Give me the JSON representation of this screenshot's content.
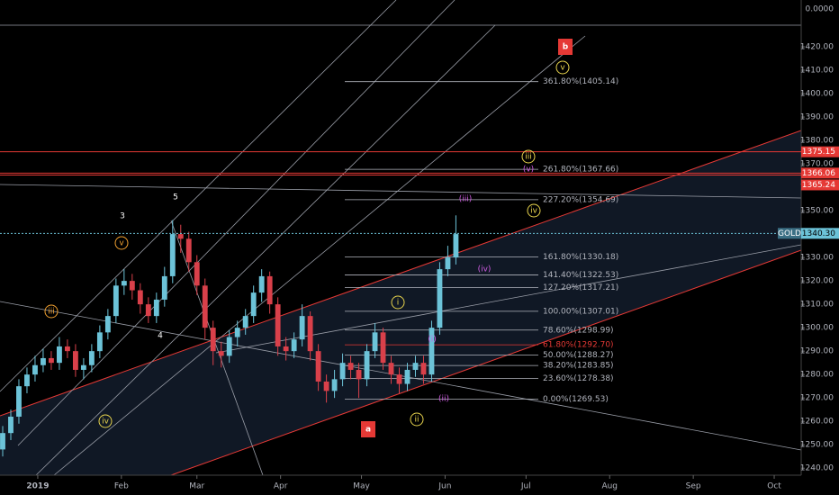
{
  "chart_data": {
    "type": "candlestick",
    "scale_label": "0.0000",
    "up_color": "#6cc3d8",
    "down_color": "#d9404a",
    "candles": [
      {
        "x": -13,
        "open": 1248,
        "high": 1258,
        "low": 1245,
        "close": 1255
      },
      {
        "x": -10,
        "open": 1255,
        "high": 1265,
        "low": 1252,
        "close": 1262
      },
      {
        "x": -7,
        "open": 1262,
        "high": 1278,
        "low": 1259,
        "close": 1275
      },
      {
        "x": -4,
        "open": 1275,
        "high": 1283,
        "low": 1272,
        "close": 1280
      },
      {
        "x": -1,
        "open": 1280,
        "high": 1288,
        "low": 1277,
        "close": 1284
      },
      {
        "x": 2,
        "open": 1284,
        "high": 1291,
        "low": 1281,
        "close": 1287
      },
      {
        "x": 5,
        "open": 1287,
        "high": 1290,
        "low": 1282,
        "close": 1285
      },
      {
        "x": 8,
        "open": 1285,
        "high": 1296,
        "low": 1282,
        "close": 1292
      },
      {
        "x": 11,
        "open": 1292,
        "high": 1295,
        "low": 1287,
        "close": 1290
      },
      {
        "x": 14,
        "open": 1290,
        "high": 1293,
        "low": 1279,
        "close": 1282
      },
      {
        "x": 17,
        "open": 1282,
        "high": 1287,
        "low": 1278,
        "close": 1284
      },
      {
        "x": 20,
        "open": 1284,
        "high": 1293,
        "low": 1281,
        "close": 1290
      },
      {
        "x": 23,
        "open": 1290,
        "high": 1301,
        "low": 1287,
        "close": 1298
      },
      {
        "x": 26,
        "open": 1298,
        "high": 1308,
        "low": 1295,
        "close": 1305
      },
      {
        "x": 29,
        "open": 1305,
        "high": 1321,
        "low": 1302,
        "close": 1318
      },
      {
        "x": 32,
        "open": 1318,
        "high": 1325,
        "low": 1314,
        "close": 1320
      },
      {
        "x": 35,
        "open": 1320,
        "high": 1323,
        "low": 1312,
        "close": 1316
      },
      {
        "x": 38,
        "open": 1316,
        "high": 1319,
        "low": 1306,
        "close": 1310
      },
      {
        "x": 41,
        "open": 1310,
        "high": 1313,
        "low": 1302,
        "close": 1305
      },
      {
        "x": 44,
        "open": 1305,
        "high": 1315,
        "low": 1302,
        "close": 1312
      },
      {
        "x": 47,
        "open": 1312,
        "high": 1326,
        "low": 1309,
        "close": 1322
      },
      {
        "x": 50,
        "open": 1322,
        "high": 1346,
        "low": 1319,
        "close": 1340
      },
      {
        "x": 53,
        "open": 1340,
        "high": 1344,
        "low": 1332,
        "close": 1338
      },
      {
        "x": 56,
        "open": 1338,
        "high": 1341,
        "low": 1324,
        "close": 1328
      },
      {
        "x": 59,
        "open": 1328,
        "high": 1331,
        "low": 1314,
        "close": 1318
      },
      {
        "x": 62,
        "open": 1318,
        "high": 1321,
        "low": 1295,
        "close": 1300
      },
      {
        "x": 65,
        "open": 1300,
        "high": 1303,
        "low": 1284,
        "close": 1290
      },
      {
        "x": 68,
        "open": 1290,
        "high": 1294,
        "low": 1283,
        "close": 1288
      },
      {
        "x": 71,
        "open": 1288,
        "high": 1299,
        "low": 1285,
        "close": 1296
      },
      {
        "x": 74,
        "open": 1296,
        "high": 1303,
        "low": 1292,
        "close": 1300
      },
      {
        "x": 77,
        "open": 1300,
        "high": 1308,
        "low": 1297,
        "close": 1305
      },
      {
        "x": 80,
        "open": 1305,
        "high": 1318,
        "low": 1302,
        "close": 1315
      },
      {
        "x": 83,
        "open": 1315,
        "high": 1325,
        "low": 1311,
        "close": 1322
      },
      {
        "x": 86,
        "open": 1322,
        "high": 1324,
        "low": 1306,
        "close": 1310
      },
      {
        "x": 89,
        "open": 1310,
        "high": 1313,
        "low": 1288,
        "close": 1292
      },
      {
        "x": 92,
        "open": 1292,
        "high": 1296,
        "low": 1286,
        "close": 1290
      },
      {
        "x": 95,
        "open": 1290,
        "high": 1298,
        "low": 1287,
        "close": 1295
      },
      {
        "x": 98,
        "open": 1295,
        "high": 1310,
        "low": 1292,
        "close": 1305
      },
      {
        "x": 101,
        "open": 1305,
        "high": 1307,
        "low": 1286,
        "close": 1290
      },
      {
        "x": 104,
        "open": 1290,
        "high": 1293,
        "low": 1273,
        "close": 1277
      },
      {
        "x": 107,
        "open": 1277,
        "high": 1280,
        "low": 1268,
        "close": 1273
      },
      {
        "x": 110,
        "open": 1273,
        "high": 1282,
        "low": 1270,
        "close": 1278
      },
      {
        "x": 113,
        "open": 1278,
        "high": 1289,
        "low": 1275,
        "close": 1285
      },
      {
        "x": 116,
        "open": 1285,
        "high": 1288,
        "low": 1278,
        "close": 1282
      },
      {
        "x": 119,
        "open": 1282,
        "high": 1285,
        "low": 1270,
        "close": 1278
      },
      {
        "x": 122,
        "open": 1278,
        "high": 1293,
        "low": 1275,
        "close": 1290
      },
      {
        "x": 125,
        "open": 1290,
        "high": 1302,
        "low": 1287,
        "close": 1298
      },
      {
        "x": 128,
        "open": 1298,
        "high": 1300,
        "low": 1282,
        "close": 1285
      },
      {
        "x": 131,
        "open": 1285,
        "high": 1288,
        "low": 1276,
        "close": 1280
      },
      {
        "x": 134,
        "open": 1280,
        "high": 1283,
        "low": 1272,
        "close": 1276
      },
      {
        "x": 137,
        "open": 1276,
        "high": 1285,
        "low": 1273,
        "close": 1282
      },
      {
        "x": 140,
        "open": 1282,
        "high": 1288,
        "low": 1279,
        "close": 1285
      },
      {
        "x": 143,
        "open": 1285,
        "high": 1288,
        "low": 1276,
        "close": 1280
      },
      {
        "x": 146,
        "open": 1280,
        "high": 1303,
        "low": 1277,
        "close": 1300
      },
      {
        "x": 149,
        "open": 1300,
        "high": 1328,
        "low": 1297,
        "close": 1325
      },
      {
        "x": 152,
        "open": 1325,
        "high": 1335,
        "low": 1322,
        "close": 1330
      },
      {
        "x": 155,
        "open": 1330,
        "high": 1348,
        "low": 1327,
        "close": 1340
      }
    ],
    "xlim": [
      -14,
      283
    ],
    "xticks": [
      {
        "value": 0,
        "label": "2019"
      },
      {
        "value": 31,
        "label": "Feb"
      },
      {
        "value": 59,
        "label": "Mar"
      },
      {
        "value": 90,
        "label": "Apr"
      },
      {
        "value": 120,
        "label": "May"
      },
      {
        "value": 151,
        "label": "Jun"
      },
      {
        "value": 181,
        "label": "Jul"
      },
      {
        "value": 212,
        "label": "Aug"
      },
      {
        "value": 243,
        "label": "Sep"
      },
      {
        "value": 273,
        "label": "Oct"
      }
    ],
    "ylim": [
      1237,
      1440
    ],
    "yticks": [
      {
        "value": 1240,
        "label": "1240.00"
      },
      {
        "value": 1250,
        "label": "1250.00"
      },
      {
        "value": 1260,
        "label": "1260.00"
      },
      {
        "value": 1270,
        "label": "1270.00"
      },
      {
        "value": 1280,
        "label": "1280.00"
      },
      {
        "value": 1290,
        "label": "1290.00"
      },
      {
        "value": 1300,
        "label": "1300.00"
      },
      {
        "value": 1310,
        "label": "1310.00"
      },
      {
        "value": 1320,
        "label": "1320.00"
      },
      {
        "value": 1330,
        "label": "1330.00"
      },
      {
        "value": 1340,
        "label": "1340.00"
      },
      {
        "value": 1350,
        "label": "1350.00"
      },
      {
        "value": 1360,
        "label": "1360.00"
      },
      {
        "value": 1370,
        "label": "1370.00"
      },
      {
        "value": 1380,
        "label": "1380.00"
      },
      {
        "value": 1390,
        "label": "1390.00"
      },
      {
        "value": 1400,
        "label": "1400.00"
      },
      {
        "value": 1410,
        "label": "1410.00"
      },
      {
        "value": 1420,
        "label": "1420.00"
      }
    ],
    "last_price": {
      "symbol": "GOLD",
      "value": 1340.3,
      "label": "1340.30"
    },
    "level_color": "#b2b5be",
    "levels": [
      {
        "value": 1405.14,
        "label": "361.80%(1405.14)"
      },
      {
        "value": 1367.66,
        "label": "261.80%(1367.66)"
      },
      {
        "value": 1354.69,
        "label": "227.20%(1354.69)"
      },
      {
        "value": 1330.18,
        "label": "161.80%(1330.18)"
      },
      {
        "value": 1322.53,
        "label": "141.40%(1322.53)"
      },
      {
        "value": 1317.21,
        "label": "127.20%(1317.21)"
      },
      {
        "value": 1307.01,
        "label": "100.00%(1307.01)"
      },
      {
        "value": 1298.99,
        "label": "78.60%(1298.99)"
      },
      {
        "value": 1292.7,
        "label": "61.80%(1292.70)",
        "color": "#e53935"
      },
      {
        "value": 1288.27,
        "label": "50.00%(1288.27)"
      },
      {
        "value": 1283.85,
        "label": "38.20%(1283.85)"
      },
      {
        "value": 1278.38,
        "label": "23.60%(1278.38)"
      },
      {
        "value": 1269.53,
        "label": "0.00%(1269.53)"
      }
    ],
    "resistance_color": "#e53935",
    "resistance": [
      1375.15,
      1366.06,
      1365.24
    ],
    "annotations": [
      {
        "text": "b",
        "color": "#e53935"
      },
      {
        "text": "v",
        "color": "#e8d44d"
      },
      {
        "text": "iii",
        "color": "#e8d44d"
      },
      {
        "text": "(v)",
        "color": "#d05ce3"
      },
      {
        "text": "(iii)",
        "color": "#d05ce3"
      },
      {
        "text": "iv",
        "color": "#e8d44d"
      },
      {
        "text": "3",
        "color": "#ffffff"
      },
      {
        "text": "5",
        "color": "#ffffff"
      },
      {
        "text": "v",
        "color": "#f0a030"
      },
      {
        "text": "(iv)",
        "color": "#d05ce3"
      },
      {
        "text": "iii",
        "color": "#f0a030"
      },
      {
        "text": "i",
        "color": "#e8d44d"
      },
      {
        "text": "4",
        "color": "#ffffff"
      },
      {
        "text": "(i)",
        "color": "#d05ce3"
      },
      {
        "text": "ii",
        "color": "#e8d44d"
      },
      {
        "text": "(ii)",
        "color": "#d05ce3"
      },
      {
        "text": "iv",
        "color": "#e8d44d"
      },
      {
        "text": "a",
        "color": "#e53935"
      }
    ]
  }
}
